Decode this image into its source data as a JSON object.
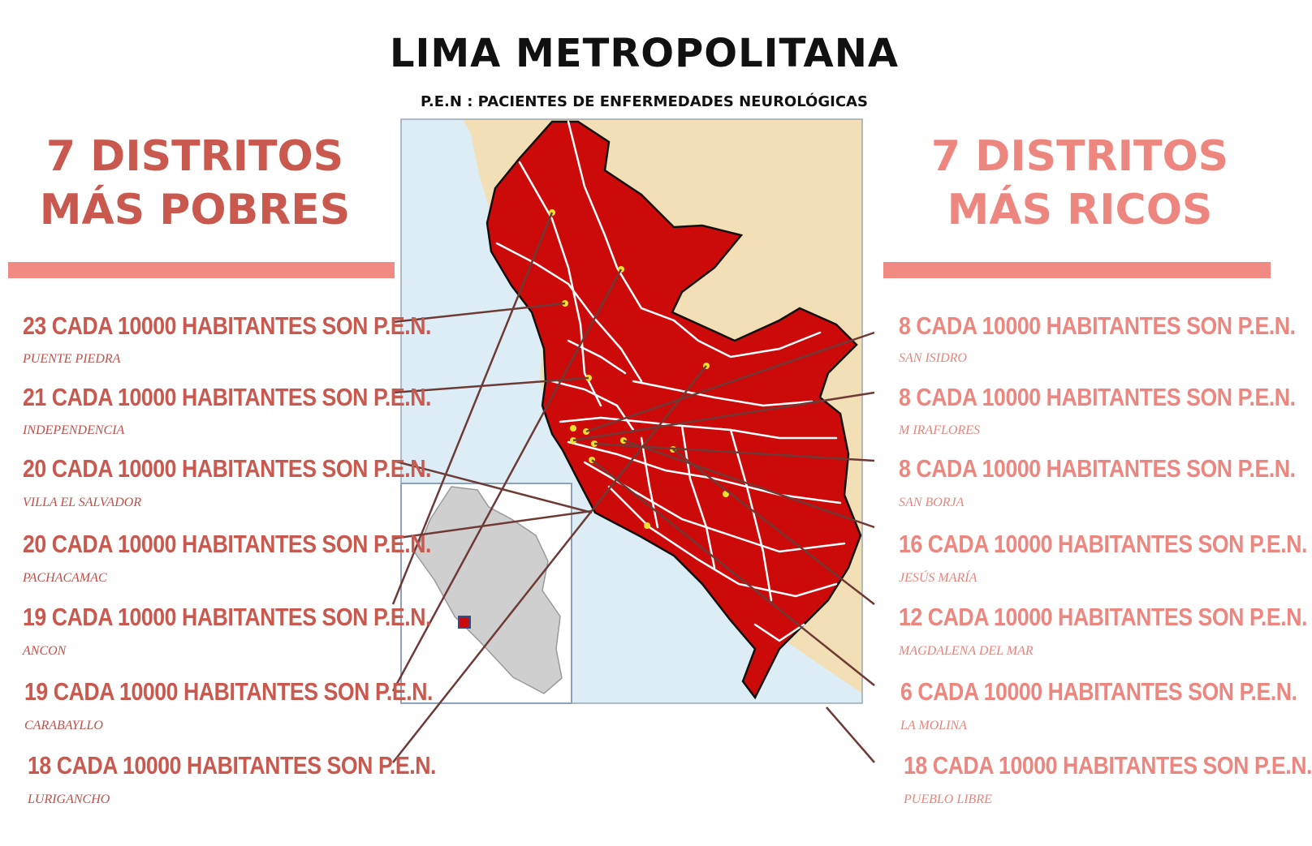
{
  "title": "LIMA METROPOLITANA",
  "subtitle": "P.E.N : PACIENTES DE ENFERMEDADES NEUROLÓGICAS",
  "left_panel": {
    "heading_line1": "7 DISTRITOS",
    "heading_line2": "MÁS POBRES",
    "items": [
      {
        "stat": "23 CADA 10000 HABITANTES SON P.E.N.",
        "district": "PUENTE PIEDRA"
      },
      {
        "stat": "21 CADA 10000 HABITANTES SON P.E.N.",
        "district": "INDEPENDENCIA"
      },
      {
        "stat": "20 CADA 10000 HABITANTES SON P.E.N.",
        "district": "VILLA EL SALVADOR"
      },
      {
        "stat": "20 CADA 10000 HABITANTES SON P.E.N.",
        "district": "PACHACAMAC"
      },
      {
        "stat": "19 CADA 10000 HABITANTES SON P.E.N.",
        "district": "ANCON"
      },
      {
        "stat": "19 CADA 10000 HABITANTES SON P.E.N.",
        "district": "CARABAYLLO"
      },
      {
        "stat": "18 CADA 10000 HABITANTES SON P.E.N.",
        "district": "LURIGANCHO"
      }
    ]
  },
  "right_panel": {
    "heading_line1": "7 DISTRITOS",
    "heading_line2": "MÁS RICOS",
    "items": [
      {
        "stat": "8 CADA 10000 HABITANTES SON P.E.N.",
        "district": "SAN ISIDRO"
      },
      {
        "stat": "8 CADA 10000 HABITANTES SON P.E.N.",
        "district": "M IRAFLORES"
      },
      {
        "stat": "8 CADA 10000 HABITANTES SON P.E.N.",
        "district": "SAN BORJA"
      },
      {
        "stat": "16 CADA 10000 HABITANTES SON P.E.N.",
        "district": "JESÚS MARÍA"
      },
      {
        "stat": "12 CADA 10000 HABITANTES SON P.E.N.",
        "district": "MAGDALENA DEL MAR"
      },
      {
        "stat": "6 CADA 10000 HABITANTES SON P.E.N.",
        "district": "LA MOLINA"
      },
      {
        "stat": "18 CADA 10000 HABITANTES SON P.E.N.",
        "district": "PUEBLO LIBRE"
      }
    ]
  },
  "colors": {
    "dark_accent": "#c9584e",
    "light_accent": "#ee8680",
    "map_red": "#cc0a0a",
    "sea": "#dcedf6",
    "land": "#f3dfb6",
    "marker": "#f3e22b",
    "connector": "#6e3a36"
  }
}
